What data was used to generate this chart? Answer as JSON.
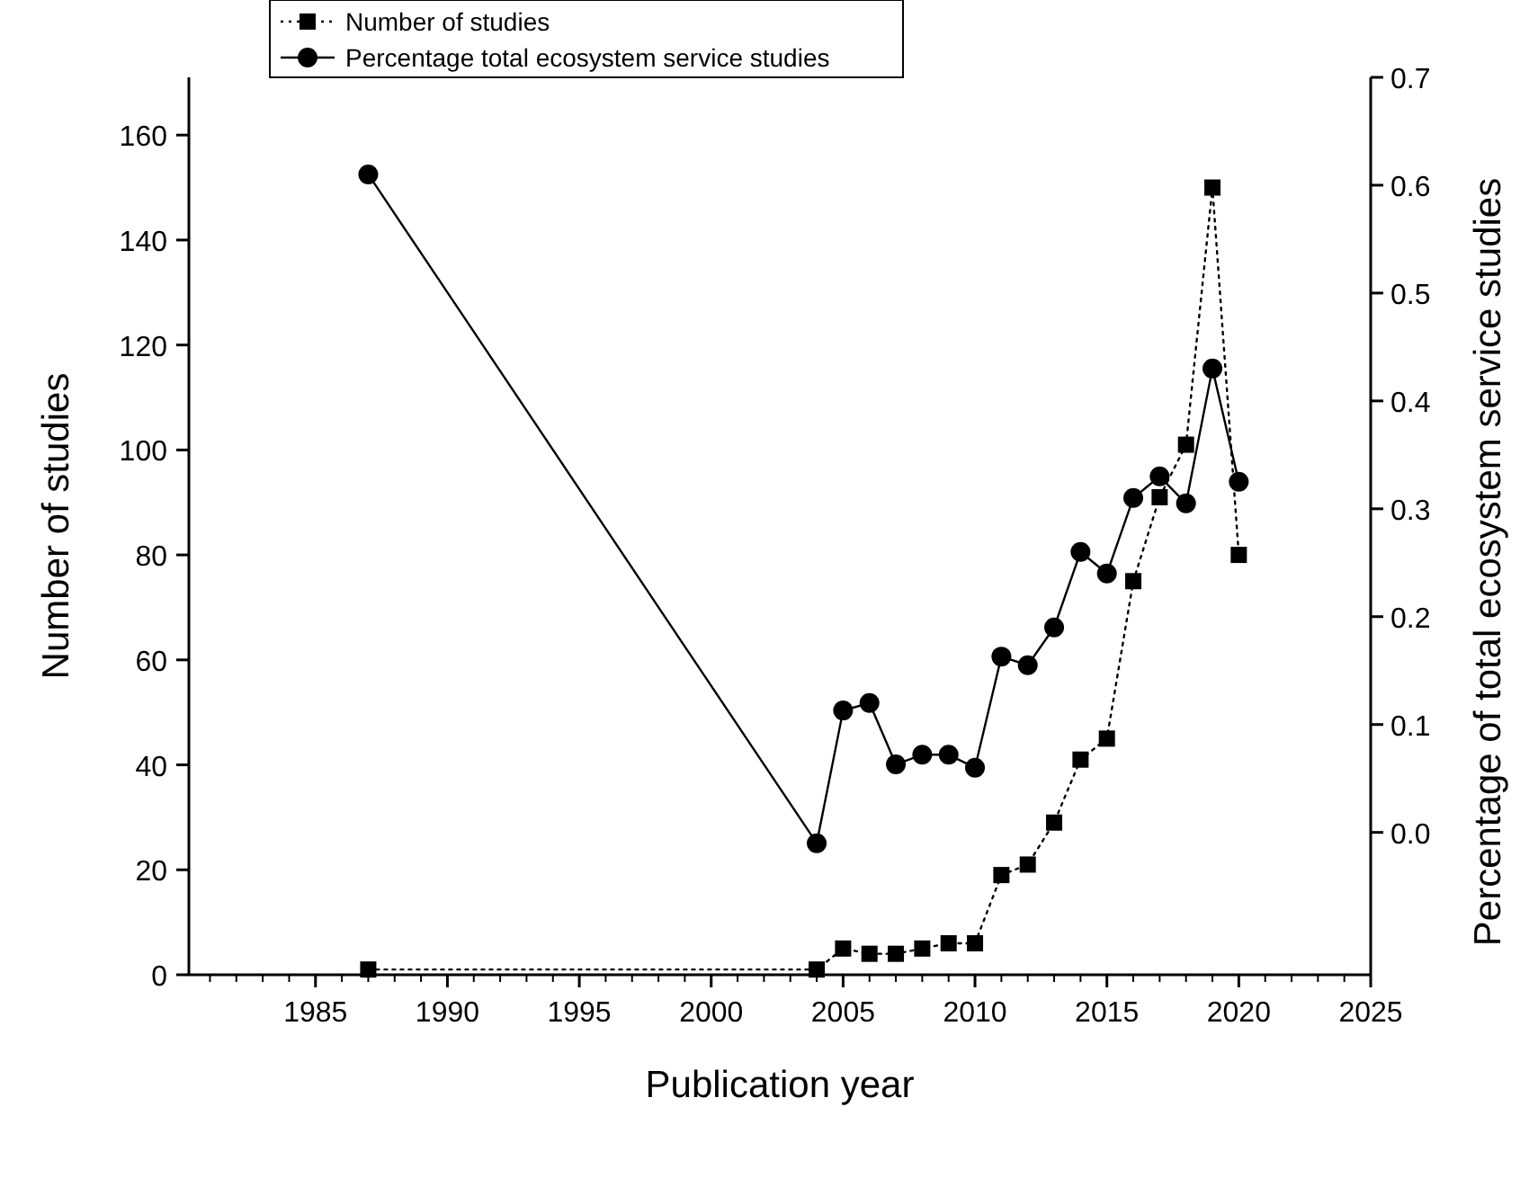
{
  "chart_data": {
    "type": "line",
    "xlabel": "Publication year",
    "ylabel": "Number of studies",
    "y2label": "Percentage of total ecosystem service studies",
    "xlim": [
      1980.2,
      2025
    ],
    "xticks": [
      1985,
      1990,
      1995,
      2000,
      2005,
      2010,
      2015,
      2020,
      2025
    ],
    "ylim": [
      0,
      171
    ],
    "yticks": [
      0,
      20,
      40,
      60,
      80,
      100,
      120,
      140,
      160
    ],
    "y2lim": [
      -0.132,
      0.7
    ],
    "y2ticks": [
      {
        "value": 0,
        "label": "0.0"
      },
      {
        "value": 0.1,
        "label": "0.1"
      },
      {
        "value": 0.2,
        "label": "0.2"
      },
      {
        "value": 0.3,
        "label": "0.3"
      },
      {
        "value": 0.4,
        "label": "0.4"
      },
      {
        "value": 0.5,
        "label": "0.5"
      },
      {
        "value": 0.6,
        "label": "0.6"
      },
      {
        "value": 0.7,
        "label": "0.7"
      }
    ],
    "x": [
      1987,
      2004,
      2005,
      2006,
      2007,
      2008,
      2009,
      2010,
      2011,
      2012,
      2013,
      2014,
      2015,
      2016,
      2017,
      2018,
      2019,
      2020
    ],
    "legend": "top left",
    "grid": false,
    "series": [
      {
        "name": "Number of studies",
        "color": "#000000",
        "marker": "square",
        "line_style": "dotted",
        "values": [
          1,
          1,
          5,
          4,
          4,
          5,
          6,
          6,
          19,
          21,
          29,
          41,
          45,
          75,
          91,
          101,
          150,
          80
        ]
      },
      {
        "name": "Percentage total ecosystem service studies",
        "color": "#000000",
        "marker": "circle",
        "line_style": "solid",
        "axis": "y2",
        "values": [
          0.61,
          -0.01,
          0.113,
          0.12,
          0.063,
          0.072,
          0.072,
          0.06,
          0.163,
          0.155,
          0.19,
          0.26,
          0.24,
          0.31,
          0.33,
          0.305,
          0.43,
          0.325
        ]
      }
    ]
  }
}
